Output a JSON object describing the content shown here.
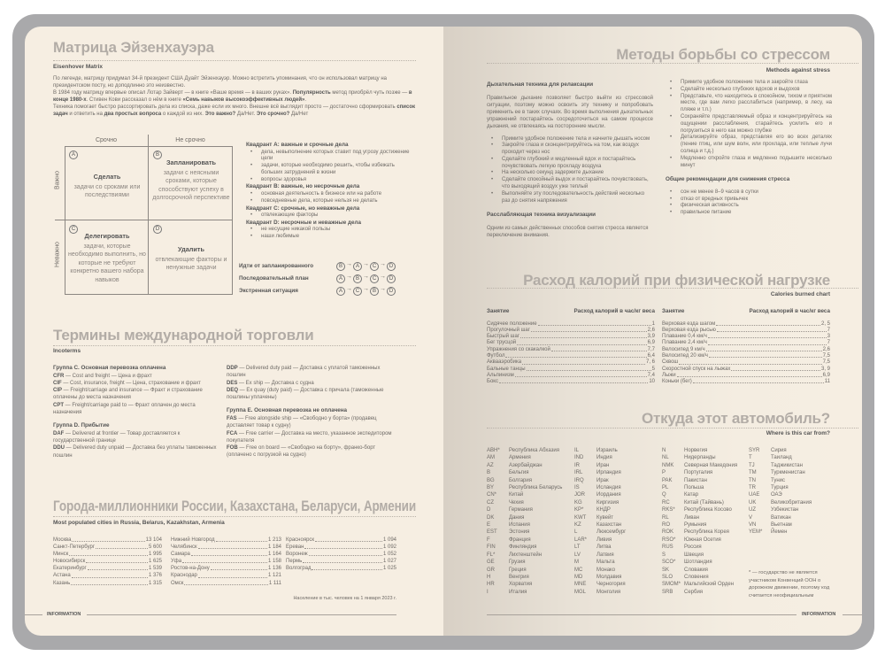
{
  "left": {
    "eisenhower": {
      "title": "Матрица Эйзенхауэра",
      "subtitle": "Eisenhover Matrix",
      "intro": [
        "По легенде, матрицу придумал 34-й президент США Дуайт Эйзенхауэр. Можно встретить упоминания, что он использовал матрицу на президентском посту, но доподлинно это неизвестно.",
        "В 1984 году матрицу впервые описал Лотар Зайверт — в книге «Ваше время — в ваших руках». <b>Популярность</b> метод приобрёл чуть позже — <b>в конце 1980-х</b>. Стивен Кови рассказал о нём в книге <b>«Семь навыков высокоэффективных людей»</b>.",
        "Техника помогает быстро рассортировать дела из списка, даже если их много. Внешне всё выглядит просто — достаточно сформировать <b>список задач</b> и ответить на <b>два простых вопроса</b> о каждой из них. <b>Это важно?</b> Да/Нет. <b>Это срочно?</b> Да/Нет"
      ],
      "col_urgent": "Срочно",
      "col_not_urgent": "Не срочно",
      "row_important": "Важно",
      "row_not_important": "Неважно",
      "quadrants": [
        {
          "letter": "A",
          "title": "Сделать",
          "text": "задачи со сроками или последствиями"
        },
        {
          "letter": "B",
          "title": "Запланировать",
          "text": "задачи с неясными сроками, которые способствуют успеху в долгосрочной перспективе"
        },
        {
          "letter": "C",
          "title": "Делегировать",
          "text": "задачи, которые необходимо выполнить, но которые не требуют конкретно вашего набора навыков"
        },
        {
          "letter": "D",
          "title": "Удалить",
          "text": "отвлекающие факторы и ненужные задачи"
        }
      ],
      "legend": [
        {
          "heading": "Квадрант A: важные и срочные дела",
          "items": [
            "дела, невыполнение которых ставит под угрозу достижение цели",
            "задачи, которые необходимо решить, чтобы избежать больших затруднений в жизни",
            "вопросы здоровья"
          ]
        },
        {
          "heading": "Квадрант B: важные, но несрочные дела",
          "items": [
            "основная деятельность в бизнесе или на работе",
            "повседневные дела, которые нельзя не делать"
          ]
        },
        {
          "heading": "Квадрант C: срочные, но неважные дела",
          "items": [
            "отвлекающие факторы"
          ]
        },
        {
          "heading": "Квадрант D: несрочные и неважные дела",
          "items": [
            "не несущие никакой пользы",
            "наши любимые"
          ]
        }
      ],
      "orders": [
        {
          "label": "Идти от запланированного",
          "seq": [
            "B",
            "A",
            "C",
            "D"
          ]
        },
        {
          "label": "Последовательный план",
          "seq": [
            "A",
            "B",
            "C",
            "D"
          ]
        },
        {
          "label": "Экстренная ситуация",
          "seq": [
            "A",
            "C",
            "B",
            "D"
          ]
        }
      ]
    },
    "incoterms": {
      "title": "Термины международной торговли",
      "subtitle": "Incoterms",
      "groups_left": [
        {
          "heading": "Группа C. Основная перевозка оплачена",
          "items": [
            {
              "code": "CFR",
              "text": " — Cost and freight — Цена и фрахт"
            },
            {
              "code": "CIF",
              "text": " — Cost, insurance, freight — Цена, страхование и фрахт"
            },
            {
              "code": "CIP",
              "text": " — Freight/carriage and insurance — Фрахт и страхование оплачены до места назначения"
            },
            {
              "code": "CPT",
              "text": " — Freight/carriage paid to — Фрахт оплачен до места назначения"
            }
          ]
        },
        {
          "heading": "Группа D. Прибытие",
          "items": [
            {
              "code": "DAF",
              "text": " — Delivered at frontier — Товар доставляется к государственной границе"
            },
            {
              "code": "DDU",
              "text": " — Delivered duty unpaid — Доставка без уплаты таможенных пошлин"
            }
          ]
        }
      ],
      "groups_right": [
        {
          "heading": "",
          "items": [
            {
              "code": "DDP",
              "text": " — Delivered duty paid — Доставка с уплатой таможенных пошлин"
            },
            {
              "code": "DES",
              "text": " — Ex ship — Доставка с судна"
            },
            {
              "code": "DEQ",
              "text": " — Ex quay (duty paid) — Доставка с причала (таможенные пошлины уплачены)"
            }
          ]
        },
        {
          "heading": "Группа E. Основная перевозка не оплачена",
          "items": [
            {
              "code": "FAS",
              "text": " — Free alongside ship — «Свободно у борта» (продавец доставляет товар к судну)"
            },
            {
              "code": "FCA",
              "text": " — Free carrier — Доставка на место, указанное экспедитором покупателя"
            },
            {
              "code": "FOB",
              "text": " — Free on board — «Свободно на борту», франко-борт (оплачено с погрузкой на судно)"
            }
          ]
        }
      ]
    },
    "cities": {
      "title": "Города-миллионники России, Казахстана, Беларуси, Армении",
      "subtitle": "Most populated cities in Russia, Belarus, Kazakhstan, Armenia",
      "columns": [
        [
          [
            "Москва",
            "13 104"
          ],
          [
            "Санкт-Петербург",
            "5 600"
          ],
          [
            "Минск",
            "1 995"
          ],
          [
            "Новосибирск",
            "1 625"
          ],
          [
            "Екатеринбург",
            "1 539"
          ],
          [
            "Астана",
            "1 376"
          ],
          [
            "Казань",
            "1 315"
          ]
        ],
        [
          [
            "Нижний Новгород",
            "1 213"
          ],
          [
            "Челябинск",
            "1 184"
          ],
          [
            "Самара",
            "1 164"
          ],
          [
            "Уфа",
            "1 158"
          ],
          [
            "Ростов-на-Дону",
            "1 136"
          ],
          [
            "Краснодар",
            "1 121"
          ],
          [
            "Омск",
            "1 111"
          ]
        ],
        [
          [
            "Красноярск",
            "1 094"
          ],
          [
            "Ереван",
            "1 092"
          ],
          [
            "Воронеж",
            "1 052"
          ],
          [
            "Пермь",
            "1 027"
          ],
          [
            "Волгоград",
            "1 025"
          ]
        ]
      ],
      "note": "Население в тыс. человек на 1 января 2023 г."
    },
    "footer": "INFORMATION"
  },
  "right": {
    "stress": {
      "title": "Методы борьбы со стрессом",
      "subtitle": "Methods against stress",
      "breath_heading": "Дыхательная техника для релаксации",
      "breath_text": "Правильное дыхание позволяет быстро выйти из стрессовой ситуации, поэтому можно освоить эту технику и попробовать применить ее в таких случаях. Во время выполнения дыхательных упражнений постарайтесь сосредоточиться на самом процессе дыхания, не отвлекаясь на посторонние мысли.",
      "breath_steps": [
        "Примите удобное положение тела и начните дышать носом",
        "Закройте глаза и сконцентрируйтесь на том, как воздух проходит через нос",
        "Сделайте глубокий и медленный вдох и постарайтесь почувствовать легкую прохладу воздуха",
        "На несколько секунд задержите дыхание",
        "Сделайте спокойный выдох и постарайтесь почувствовать, что выходящий воздух уже теплый",
        "Выполняйте эту последовательность действий несколько раз до снятия напряжения"
      ],
      "visual_heading": "Расслабляющая техника визуализации",
      "visual_text": "Одним из самых действенных способов снятия стресса является переключение внимания.",
      "visual_steps": [
        "Примите удобное положение тела и закройте глаза",
        "Сделайте несколько глубоких вдохов и выдохов",
        "Представьте, что находитесь в спокойном, тихом и приятном месте, где вам легко расслабиться (например, в лесу, на пляже и т.п.)",
        "Сохраняйте представляемый образ и концентрируйтесь на ощущении расслабления, старайтесь усилить его и погрузиться в него как можно глубже",
        "Детализируйте образ, представляя его во всех деталях (пение птиц, или шум волн, или прохлада, или теплые лучи солнца и т.д.)",
        "Медленно откройте глаза и медленно подышите несколько минут"
      ],
      "general_heading": "Общие рекомендации для снижения стресса",
      "general_items": [
        "сон не менее 8–9 часов в сутки",
        "отказ от вредных привычек",
        "физическая активность",
        "правильное питание"
      ]
    },
    "calories": {
      "title": "Расход калорий при физической нагрузке",
      "subtitle": "Calories burned chart",
      "col_activity": "Занятие",
      "col_value": "Расход калорий в час/кг веса",
      "columns": [
        [
          [
            "Сидячее положение",
            "1"
          ],
          [
            "Прогулочный шаг",
            "2,6"
          ],
          [
            "Быстрый шаг",
            "3,9"
          ],
          [
            "Бег трусцой",
            "6,9"
          ],
          [
            "Упражнения со скакалкой",
            "7,7"
          ],
          [
            "Футбол",
            "6,4"
          ],
          [
            "Аквааэробика",
            "7, 6"
          ],
          [
            "Бальные танцы",
            "5"
          ],
          [
            "Альпинизм",
            "7,4"
          ],
          [
            "Бокс",
            "10"
          ]
        ],
        [
          [
            "Верховая езда шагом",
            "2, 5"
          ],
          [
            "Верховая езда рысью",
            "7"
          ],
          [
            "Плавание 0,4 км/ч",
            "3"
          ],
          [
            "Плавание 2,4 км/ч",
            "7"
          ],
          [
            "Велосипед 9 км/ч",
            "2,6"
          ],
          [
            "Велосипед 20 км/ч",
            "7,5"
          ],
          [
            "Сквош",
            "7,5"
          ],
          [
            "Скоростной спуск на лыжах",
            "3, 9"
          ],
          [
            "Лыжи",
            "6,9"
          ],
          [
            "Коньки (бег)",
            "11"
          ]
        ]
      ]
    },
    "cars": {
      "title": "Откуда этот автомобиль?",
      "subtitle": "Where is this car from?",
      "columns": [
        [
          [
            "ABH*",
            "Республика Абхазия"
          ],
          [
            "AM",
            "Армения"
          ],
          [
            "AZ",
            "Азербайджан"
          ],
          [
            "B",
            "Бельгия"
          ],
          [
            "BG",
            "Болгария"
          ],
          [
            "BY",
            "Республика Беларусь"
          ],
          [
            "CN*",
            "Китай"
          ],
          [
            "CZ",
            "Чехия"
          ],
          [
            "D",
            "Германия"
          ],
          [
            "DK",
            "Дания"
          ],
          [
            "E",
            "Испания"
          ],
          [
            "EST",
            "Эстония"
          ],
          [
            "F",
            "Франция"
          ],
          [
            "FIN",
            "Финляндия"
          ],
          [
            "FL*",
            "Лихтенштейн"
          ],
          [
            "GE",
            "Грузия"
          ],
          [
            "GR",
            "Греция"
          ],
          [
            "H",
            "Венгрия"
          ],
          [
            "HR",
            "Хорватия"
          ],
          [
            "I",
            "Италия"
          ]
        ],
        [
          [
            "IL",
            "Израиль"
          ],
          [
            "IND",
            "Индия"
          ],
          [
            "IR",
            "Иран"
          ],
          [
            "IRL",
            "Ирландия"
          ],
          [
            "IRQ",
            "Ирак"
          ],
          [
            "IS",
            "Исландия"
          ],
          [
            "JOR",
            "Иордания"
          ],
          [
            "KG",
            "Киргизия"
          ],
          [
            "KP*",
            "КНДР"
          ],
          [
            "KWT",
            "Кувейт"
          ],
          [
            "KZ",
            "Казахстан"
          ],
          [
            "L",
            "Люксембург"
          ],
          [
            "LAR*",
            "Ливия"
          ],
          [
            "LT",
            "Литва"
          ],
          [
            "LV",
            "Латвия"
          ],
          [
            "M",
            "Мальта"
          ],
          [
            "MC",
            "Монако"
          ],
          [
            "MD",
            "Молдавия"
          ],
          [
            "MNE",
            "Черногория"
          ],
          [
            "MGL",
            "Монголия"
          ]
        ],
        [
          [
            "N",
            "Норвегия"
          ],
          [
            "NL",
            "Нидерланды"
          ],
          [
            "NMK",
            "Северная Македония"
          ],
          [
            "P",
            "Португалия"
          ],
          [
            "PAK",
            "Пакистан"
          ],
          [
            "PL",
            "Польша"
          ],
          [
            "Q",
            "Катар"
          ],
          [
            "RC",
            "Китай (Тайвань)"
          ],
          [
            "RKS*",
            "Республика Косово"
          ],
          [
            "RL",
            "Ливан"
          ],
          [
            "RO",
            "Румыния"
          ],
          [
            "ROK",
            "Республика Корея"
          ],
          [
            "RSO*",
            "Южная Осетия"
          ],
          [
            "RUS",
            "Россия"
          ],
          [
            "S",
            "Швеция"
          ],
          [
            "SCO*",
            "Шотландия"
          ],
          [
            "SK",
            "Словакия"
          ],
          [
            "SLO",
            "Словения"
          ],
          [
            "SMOM*",
            "Мальтийский Орден"
          ],
          [
            "SRB",
            "Сербия"
          ]
        ],
        [
          [
            "SYR",
            "Сирия"
          ],
          [
            "T",
            "Таиланд"
          ],
          [
            "TJ",
            "Таджикистан"
          ],
          [
            "TM",
            "Туркменистан"
          ],
          [
            "TN",
            "Тунис"
          ],
          [
            "TR",
            "Турция"
          ],
          [
            "UAE",
            "ОАЭ"
          ],
          [
            "UK",
            "Великобритания"
          ],
          [
            "UZ",
            "Узбекистан"
          ],
          [
            "V",
            "Ватикан"
          ],
          [
            "VN",
            "Вьетнам"
          ],
          [
            "YEM*",
            "Йемен"
          ]
        ]
      ],
      "note": "* — государство не является участником Конвенций ООН о дорожном движении, поэтому код считается неофициальным"
    },
    "footer": "INFORMATION"
  }
}
